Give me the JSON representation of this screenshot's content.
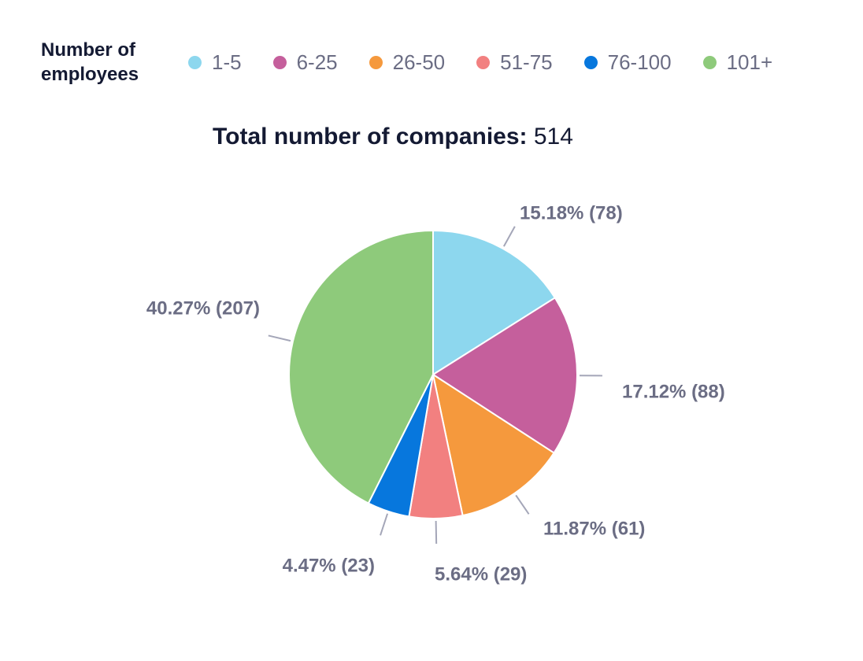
{
  "legend": {
    "title": "Number of\nemployees",
    "items": [
      {
        "label": "1-5",
        "color": "#8dd7ee"
      },
      {
        "label": "6-25",
        "color": "#c55f9c"
      },
      {
        "label": "26-50",
        "color": "#f5993d"
      },
      {
        "label": "51-75",
        "color": "#f28080"
      },
      {
        "label": "76-100",
        "color": "#0777dd"
      },
      {
        "label": "101+",
        "color": "#8eca7b"
      }
    ]
  },
  "title": {
    "label": "Total number of companies:",
    "value": "514"
  },
  "chart_data": {
    "type": "pie",
    "title": "Total number of companies: 514",
    "categories": [
      "1-5",
      "6-25",
      "26-50",
      "51-75",
      "76-100",
      "101+"
    ],
    "values": [
      78,
      88,
      61,
      29,
      23,
      207
    ],
    "percentages": [
      15.18,
      17.12,
      11.87,
      5.64,
      4.47,
      40.27
    ],
    "data_labels": [
      "15.18% (78)",
      "17.12% (88)",
      "11.87% (61)",
      "5.64% (29)",
      "4.47% (23)",
      "40.27% (207)"
    ],
    "colors": [
      "#8dd7ee",
      "#c55f9c",
      "#f5993d",
      "#f28080",
      "#0777dd",
      "#8eca7b"
    ],
    "legend_position": "top",
    "start_angle": "12 o'clock, clockwise"
  }
}
